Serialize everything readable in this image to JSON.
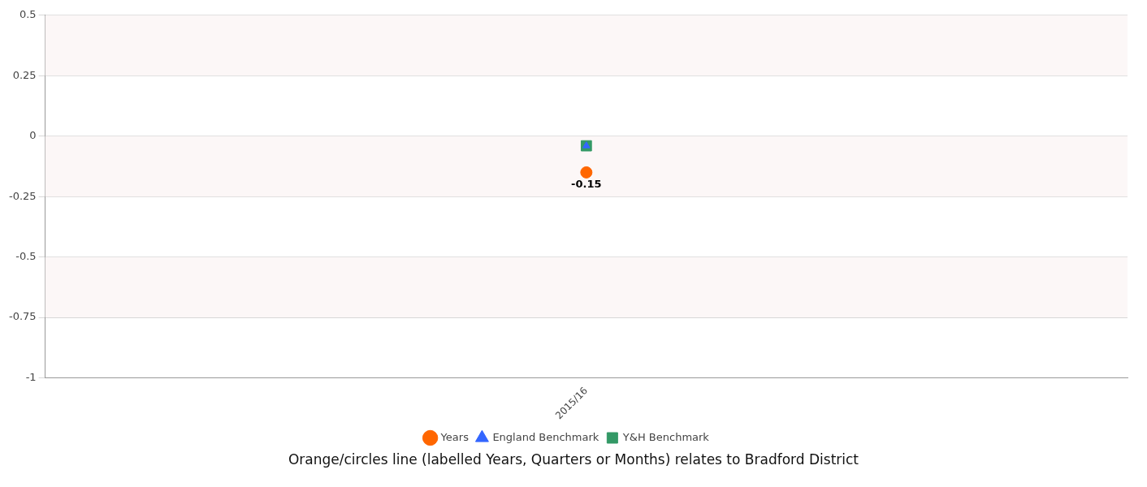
{
  "chart_data": {
    "type": "line",
    "categories": [
      "2015/16"
    ],
    "series": [
      {
        "name": "Years",
        "color": "#ff6600",
        "values": [
          -0.15
        ],
        "marker": "circle",
        "value_labels": [
          "-0.15"
        ]
      },
      {
        "name": "England Benchmark",
        "color": "#3366ff",
        "values": [
          -0.04
        ],
        "marker": "triangle"
      },
      {
        "name": "Y&H Benchmark",
        "color": "#339966",
        "values": [
          -0.04
        ],
        "marker": "square"
      }
    ],
    "ylim": [
      -1,
      0.5
    ],
    "yticks": [
      -1,
      -0.75,
      -0.5,
      -0.25,
      0,
      0.25,
      0.5
    ],
    "grid": "y",
    "legend": "bottom",
    "bands": [
      {
        "axis": "y",
        "from": 0.25,
        "to": 0.5,
        "color": "#fcf7f7"
      },
      {
        "axis": "y",
        "from": -0.25,
        "to": 0,
        "color": "#fcf7f7"
      },
      {
        "axis": "y",
        "from": -0.75,
        "to": -0.5,
        "color": "#fcf7f7"
      }
    ],
    "annotations": [
      "Orange/circles line (labelled Years, Quarters or Months) relates to Bradford District"
    ]
  }
}
